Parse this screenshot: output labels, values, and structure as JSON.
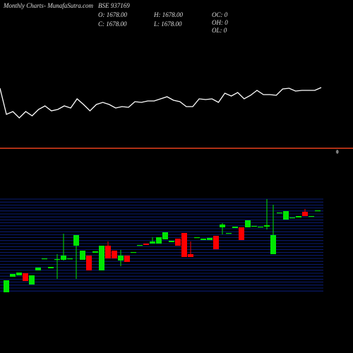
{
  "header": {
    "left": "Monthly Charts",
    "site": "- MunafaSutra.com",
    "symbol": "BSE 937169",
    "open": "O: 1678.00",
    "high": "H: 1678.00",
    "close": "C: 1678.00",
    "low": "L: 1678.00",
    "oc": "OC: 0",
    "oh": "OH: 0",
    "ol": "OL: 0",
    "marker": "0"
  },
  "chart_data": [
    {
      "type": "line",
      "color": "#ffffff",
      "ylim": [
        20,
        80
      ],
      "values": [
        75,
        38,
        42,
        33,
        42,
        36,
        45,
        50,
        43,
        45,
        50,
        47,
        60,
        52,
        43,
        52,
        55,
        52,
        47,
        49,
        48,
        56,
        55,
        57,
        57,
        60,
        63,
        58,
        56,
        49,
        49,
        60,
        59,
        60,
        55,
        68,
        64,
        69,
        60,
        65,
        72,
        66,
        66,
        65,
        74,
        75,
        71,
        72,
        72,
        72,
        76
      ]
    },
    {
      "type": "candlestick",
      "up_color": "#00e600",
      "down_color": "#ff0000",
      "ylim": [
        85,
        245
      ],
      "open": [
        86,
        108,
        110,
        113,
        97,
        117,
        134,
        120,
        132,
        132,
        134,
        152,
        132,
        138,
        142,
        117,
        152,
        145,
        131,
        138,
        143,
        153,
        155,
        155,
        155,
        161,
        157,
        162,
        170,
        140,
        164,
        160,
        160,
        166,
        178,
        170,
        177,
        178,
        178,
        180,
        179,
        179,
        140,
        199,
        189,
        192,
        192,
        200,
        194,
        202
      ],
      "high": [
        103,
        112,
        114,
        113,
        110,
        121,
        134,
        122,
        140,
        169,
        134,
        167,
        145,
        138,
        144,
        152,
        158,
        145,
        146,
        138,
        143,
        153,
        155,
        164,
        164,
        171,
        159,
        162,
        170,
        158,
        164,
        162,
        163,
        166,
        184,
        170,
        179,
        178,
        188,
        180,
        179,
        218,
        210,
        199,
        201,
        192,
        194,
        204,
        194,
        202
      ],
      "low": [
        86,
        108,
        110,
        102,
        97,
        117,
        134,
        120,
        105,
        131,
        134,
        105,
        132,
        117,
        142,
        117,
        134,
        134,
        123,
        129,
        143,
        153,
        153,
        155,
        155,
        161,
        157,
        152,
        136,
        136,
        164,
        160,
        160,
        147,
        168,
        170,
        177,
        160,
        178,
        180,
        179,
        175,
        140,
        199,
        189,
        192,
        192,
        194,
        194,
        202
      ],
      "close": [
        103,
        112,
        114,
        102,
        110,
        121,
        134,
        122,
        133,
        138,
        134,
        167,
        145,
        117,
        144,
        152,
        134,
        134,
        138,
        129,
        143,
        153,
        153,
        158,
        164,
        171,
        159,
        152,
        136,
        136,
        164,
        162,
        163,
        147,
        182,
        170,
        179,
        160,
        188,
        180,
        179,
        181,
        167,
        199,
        201,
        192,
        194,
        194,
        194,
        202
      ]
    }
  ]
}
